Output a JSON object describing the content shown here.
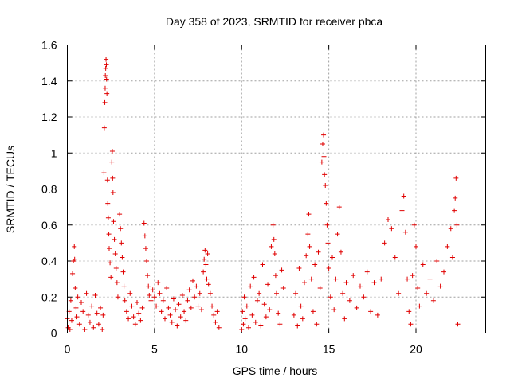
{
  "chart_data": {
    "type": "scatter",
    "title": "Day 358 of 2023, SRMTID for receiver pbca",
    "xlabel": "GPS time / hours",
    "ylabel": "SRMTID / TECUs",
    "xlim": [
      0,
      24
    ],
    "ylim": [
      0,
      1.6
    ],
    "x_ticks": [
      0,
      5,
      10,
      15,
      20
    ],
    "x_tick_labels": [
      "0",
      "5",
      "10",
      "15",
      "20"
    ],
    "y_ticks": [
      0,
      0.2,
      0.4,
      0.6,
      0.8,
      1.0,
      1.2,
      1.4,
      1.6
    ],
    "y_tick_labels": [
      "0",
      "0.2",
      "0.4",
      "0.6",
      "0.8",
      "1",
      "1.2",
      "1.4",
      "1.6"
    ],
    "grid": true,
    "marker": "+",
    "color": "#e00000",
    "series": [
      {
        "name": "pbca",
        "points": [
          [
            0.0,
            0.08
          ],
          [
            0.05,
            0.03
          ],
          [
            0.1,
            0.12
          ],
          [
            0.15,
            0.02
          ],
          [
            0.2,
            0.18
          ],
          [
            0.25,
            0.07
          ],
          [
            0.3,
            0.33
          ],
          [
            0.35,
            0.4
          ],
          [
            0.4,
            0.48
          ],
          [
            0.42,
            0.41
          ],
          [
            0.45,
            0.25
          ],
          [
            0.5,
            0.14
          ],
          [
            0.55,
            0.09
          ],
          [
            0.6,
            0.2
          ],
          [
            0.7,
            0.05
          ],
          [
            0.8,
            0.17
          ],
          [
            0.9,
            0.12
          ],
          [
            1.0,
            0.02
          ],
          [
            1.1,
            0.22
          ],
          [
            1.2,
            0.1
          ],
          [
            1.3,
            0.06
          ],
          [
            1.4,
            0.15
          ],
          [
            1.5,
            0.03
          ],
          [
            1.6,
            0.21
          ],
          [
            1.7,
            0.11
          ],
          [
            1.8,
            0.05
          ],
          [
            1.9,
            0.14
          ],
          [
            2.0,
            0.02
          ],
          [
            2.05,
            0.1
          ],
          [
            2.1,
            0.89
          ],
          [
            2.12,
            1.14
          ],
          [
            2.15,
            1.28
          ],
          [
            2.17,
            1.36
          ],
          [
            2.18,
            1.43
          ],
          [
            2.2,
            1.47
          ],
          [
            2.22,
            1.52
          ],
          [
            2.24,
            1.49
          ],
          [
            2.25,
            1.41
          ],
          [
            2.27,
            1.33
          ],
          [
            2.3,
            0.85
          ],
          [
            2.32,
            0.72
          ],
          [
            2.35,
            0.64
          ],
          [
            2.38,
            0.55
          ],
          [
            2.4,
            0.47
          ],
          [
            2.45,
            0.39
          ],
          [
            2.5,
            0.31
          ],
          [
            2.55,
            0.95
          ],
          [
            2.58,
            1.01
          ],
          [
            2.6,
            0.86
          ],
          [
            2.62,
            0.78
          ],
          [
            2.65,
            0.62
          ],
          [
            2.7,
            0.52
          ],
          [
            2.75,
            0.44
          ],
          [
            2.8,
            0.36
          ],
          [
            2.85,
            0.28
          ],
          [
            2.9,
            0.2
          ],
          [
            3.0,
            0.66
          ],
          [
            3.05,
            0.58
          ],
          [
            3.1,
            0.5
          ],
          [
            3.15,
            0.42
          ],
          [
            3.2,
            0.34
          ],
          [
            3.25,
            0.26
          ],
          [
            3.3,
            0.18
          ],
          [
            3.4,
            0.12
          ],
          [
            3.5,
            0.08
          ],
          [
            3.6,
            0.22
          ],
          [
            3.7,
            0.15
          ],
          [
            3.8,
            0.09
          ],
          [
            3.9,
            0.05
          ],
          [
            4.0,
            0.17
          ],
          [
            4.1,
            0.11
          ],
          [
            4.2,
            0.07
          ],
          [
            4.3,
            0.14
          ],
          [
            4.4,
            0.61
          ],
          [
            4.45,
            0.54
          ],
          [
            4.5,
            0.47
          ],
          [
            4.55,
            0.4
          ],
          [
            4.6,
            0.32
          ],
          [
            4.65,
            0.26
          ],
          [
            4.7,
            0.21
          ],
          [
            4.8,
            0.18
          ],
          [
            4.9,
            0.24
          ],
          [
            5.0,
            0.2
          ],
          [
            5.1,
            0.15
          ],
          [
            5.2,
            0.28
          ],
          [
            5.3,
            0.22
          ],
          [
            5.4,
            0.12
          ],
          [
            5.5,
            0.18
          ],
          [
            5.6,
            0.08
          ],
          [
            5.7,
            0.25
          ],
          [
            5.8,
            0.14
          ],
          [
            5.9,
            0.1
          ],
          [
            6.0,
            0.06
          ],
          [
            6.1,
            0.19
          ],
          [
            6.2,
            0.13
          ],
          [
            6.3,
            0.04
          ],
          [
            6.4,
            0.16
          ],
          [
            6.5,
            0.09
          ],
          [
            6.6,
            0.21
          ],
          [
            6.7,
            0.12
          ],
          [
            6.8,
            0.07
          ],
          [
            6.9,
            0.18
          ],
          [
            7.0,
            0.24
          ],
          [
            7.1,
            0.14
          ],
          [
            7.2,
            0.29
          ],
          [
            7.3,
            0.2
          ],
          [
            7.4,
            0.26
          ],
          [
            7.5,
            0.15
          ],
          [
            7.6,
            0.22
          ],
          [
            7.7,
            0.13
          ],
          [
            7.8,
            0.34
          ],
          [
            7.85,
            0.41
          ],
          [
            7.9,
            0.46
          ],
          [
            7.95,
            0.38
          ],
          [
            8.0,
            0.3
          ],
          [
            8.05,
            0.44
          ],
          [
            8.1,
            0.27
          ],
          [
            8.2,
            0.22
          ],
          [
            8.3,
            0.15
          ],
          [
            8.4,
            0.1
          ],
          [
            8.5,
            0.06
          ],
          [
            8.6,
            0.12
          ],
          [
            8.7,
            0.03
          ],
          [
            10.0,
            0.02
          ],
          [
            10.05,
            0.12
          ],
          [
            10.1,
            0.05
          ],
          [
            10.15,
            0.2
          ],
          [
            10.2,
            0.08
          ],
          [
            10.3,
            0.15
          ],
          [
            10.4,
            0.03
          ],
          [
            10.5,
            0.26
          ],
          [
            10.6,
            0.1
          ],
          [
            10.7,
            0.31
          ],
          [
            10.8,
            0.06
          ],
          [
            10.9,
            0.18
          ],
          [
            11.0,
            0.22
          ],
          [
            11.1,
            0.04
          ],
          [
            11.2,
            0.38
          ],
          [
            11.3,
            0.16
          ],
          [
            11.4,
            0.09
          ],
          [
            11.5,
            0.27
          ],
          [
            11.6,
            0.13
          ],
          [
            11.7,
            0.48
          ],
          [
            11.8,
            0.6
          ],
          [
            11.85,
            0.52
          ],
          [
            11.9,
            0.44
          ],
          [
            11.95,
            0.32
          ],
          [
            12.0,
            0.22
          ],
          [
            12.1,
            0.11
          ],
          [
            12.2,
            0.05
          ],
          [
            12.3,
            0.35
          ],
          [
            12.4,
            0.25
          ],
          [
            13.0,
            0.1
          ],
          [
            13.1,
            0.22
          ],
          [
            13.2,
            0.04
          ],
          [
            13.3,
            0.36
          ],
          [
            13.4,
            0.15
          ],
          [
            13.5,
            0.08
          ],
          [
            13.6,
            0.28
          ],
          [
            13.7,
            0.43
          ],
          [
            13.8,
            0.55
          ],
          [
            13.85,
            0.66
          ],
          [
            13.9,
            0.48
          ],
          [
            14.0,
            0.3
          ],
          [
            14.1,
            0.12
          ],
          [
            14.2,
            0.38
          ],
          [
            14.3,
            0.05
          ],
          [
            14.4,
            0.45
          ],
          [
            14.5,
            0.25
          ],
          [
            14.6,
            0.95
          ],
          [
            14.65,
            1.05
          ],
          [
            14.7,
            1.1
          ],
          [
            14.72,
            0.98
          ],
          [
            14.75,
            0.88
          ],
          [
            14.8,
            0.82
          ],
          [
            14.85,
            0.72
          ],
          [
            14.9,
            0.6
          ],
          [
            14.95,
            0.5
          ],
          [
            15.0,
            0.36
          ],
          [
            15.1,
            0.2
          ],
          [
            15.2,
            0.42
          ],
          [
            15.3,
            0.13
          ],
          [
            15.4,
            0.3
          ],
          [
            15.5,
            0.55
          ],
          [
            15.6,
            0.7
          ],
          [
            15.7,
            0.45
          ],
          [
            15.8,
            0.22
          ],
          [
            15.9,
            0.08
          ],
          [
            16.0,
            0.28
          ],
          [
            16.2,
            0.18
          ],
          [
            16.4,
            0.32
          ],
          [
            16.6,
            0.14
          ],
          [
            16.8,
            0.26
          ],
          [
            17.0,
            0.2
          ],
          [
            17.2,
            0.34
          ],
          [
            17.4,
            0.12
          ],
          [
            17.6,
            0.28
          ],
          [
            17.8,
            0.1
          ],
          [
            18.0,
            0.3
          ],
          [
            18.2,
            0.5
          ],
          [
            18.4,
            0.63
          ],
          [
            18.6,
            0.58
          ],
          [
            18.8,
            0.42
          ],
          [
            19.0,
            0.22
          ],
          [
            19.2,
            0.68
          ],
          [
            19.3,
            0.76
          ],
          [
            19.4,
            0.56
          ],
          [
            19.5,
            0.3
          ],
          [
            19.6,
            0.12
          ],
          [
            19.7,
            0.05
          ],
          [
            19.8,
            0.32
          ],
          [
            19.9,
            0.6
          ],
          [
            20.0,
            0.48
          ],
          [
            20.1,
            0.25
          ],
          [
            20.2,
            0.15
          ],
          [
            20.4,
            0.38
          ],
          [
            20.6,
            0.22
          ],
          [
            20.8,
            0.3
          ],
          [
            21.0,
            0.18
          ],
          [
            21.2,
            0.4
          ],
          [
            21.4,
            0.26
          ],
          [
            21.6,
            0.34
          ],
          [
            21.8,
            0.48
          ],
          [
            22.0,
            0.58
          ],
          [
            22.1,
            0.42
          ],
          [
            22.2,
            0.68
          ],
          [
            22.25,
            0.75
          ],
          [
            22.3,
            0.86
          ],
          [
            22.35,
            0.6
          ],
          [
            22.4,
            0.05
          ]
        ]
      }
    ]
  }
}
